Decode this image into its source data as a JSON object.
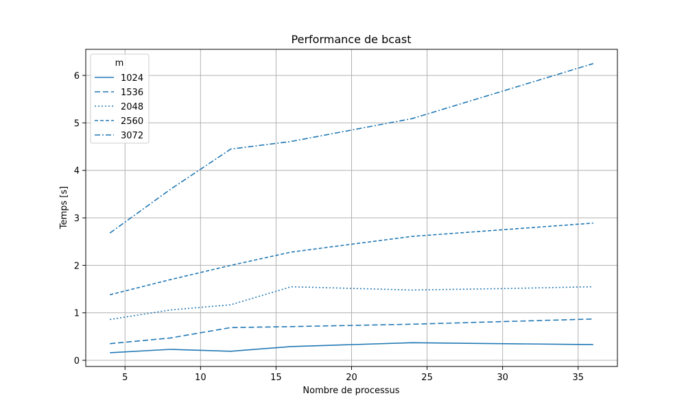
{
  "chart_data": {
    "type": "line",
    "title": "Performance de bcast",
    "xlabel": "Nombre de processus",
    "ylabel": "Temps [s]",
    "xlim": [
      2.4,
      37.6
    ],
    "ylim": [
      -0.13,
      6.55
    ],
    "xticks": [
      5,
      10,
      15,
      20,
      25,
      30,
      35
    ],
    "yticks": [
      0,
      1,
      2,
      3,
      4,
      5,
      6
    ],
    "grid": true,
    "legend": {
      "title": "m",
      "placement": "top-left"
    },
    "color": "#1f77b4",
    "x": [
      4,
      8,
      12,
      16,
      24,
      36
    ],
    "series": [
      {
        "name": "1024",
        "style": "solid",
        "values": [
          0.16,
          0.23,
          0.19,
          0.29,
          0.37,
          0.33
        ],
        "x": [
          4,
          8,
          12,
          16,
          24,
          36
        ]
      },
      {
        "name": "1536",
        "style": "dashed",
        "values": [
          0.35,
          0.47,
          0.69,
          0.71,
          0.76,
          0.87
        ],
        "x": [
          4,
          8,
          12,
          16,
          24,
          36
        ]
      },
      {
        "name": "2048",
        "style": "dotted",
        "values": [
          0.86,
          1.06,
          1.17,
          1.55,
          1.48,
          1.51,
          1.55
        ],
        "x": [
          4,
          8,
          12,
          16,
          24,
          30,
          36
        ]
      },
      {
        "name": "2560",
        "style": "dashed2",
        "values": [
          1.38,
          1.7,
          2.0,
          2.28,
          2.61,
          2.89
        ],
        "x": [
          4,
          8,
          12,
          16,
          24,
          36
        ]
      },
      {
        "name": "3072",
        "style": "dashdot",
        "values": [
          2.68,
          3.6,
          4.45,
          4.61,
          5.09,
          6.25
        ],
        "x": [
          4,
          8,
          12,
          16,
          24,
          36
        ]
      }
    ]
  }
}
